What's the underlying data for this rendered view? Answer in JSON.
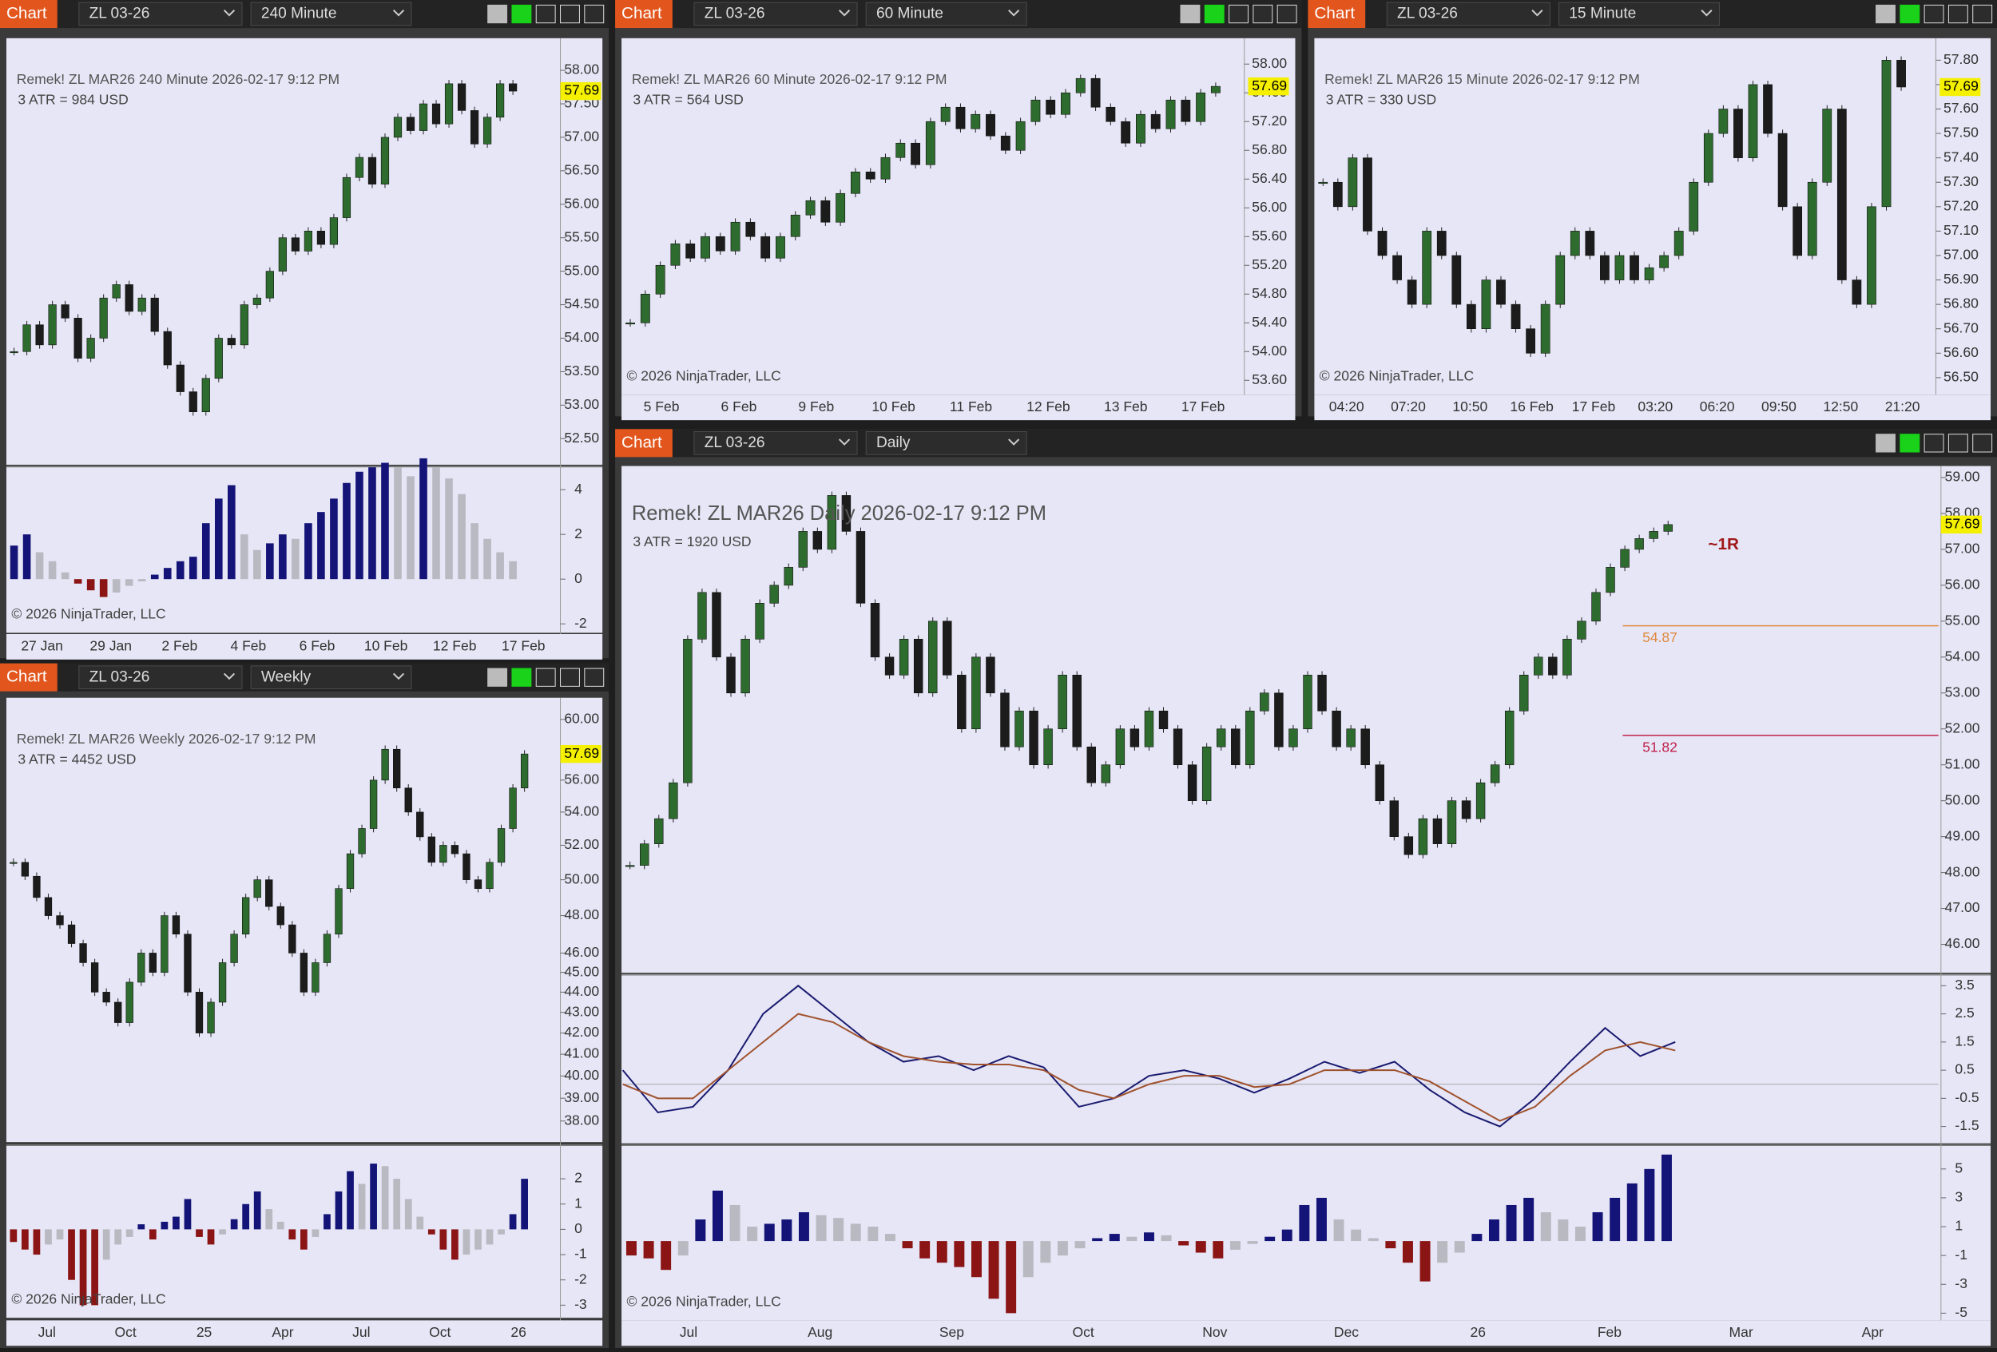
{
  "panels": [
    {
      "toolbar": {
        "tab": "Chart",
        "instrument": "ZL 03-26",
        "interval": "240 Minute"
      },
      "chart": {
        "type": "candlestick",
        "header": "Remek!  ZL MAR26  240 Minute  2026-02-17 9:12 PM",
        "atr": "3 ATR = 984 USD",
        "copyright": "© 2026 NinjaTrader, LLC",
        "last_price": 57.69,
        "up_color": "#2e6b2e",
        "down_color": "#1c1c1c",
        "closes": [
          53.8,
          54.2,
          53.9,
          54.5,
          54.3,
          53.7,
          54.0,
          54.6,
          54.8,
          54.4,
          54.6,
          54.1,
          53.6,
          53.2,
          52.9,
          53.4,
          54.0,
          53.9,
          54.5,
          54.6,
          55.0,
          55.5,
          55.3,
          55.6,
          55.4,
          55.8,
          56.4,
          56.7,
          56.3,
          57.0,
          57.3,
          57.1,
          57.5,
          57.2,
          57.8,
          57.4,
          56.9,
          57.3,
          57.8,
          57.69
        ],
        "ylim": [
          52.11,
          58.48
        ],
        "log_scale": false,
        "yticks": [
          {
            "value": 52.5,
            "label": "52.50"
          },
          {
            "value": 53,
            "label": "53.00"
          },
          {
            "value": 53.5,
            "label": "53.50"
          },
          {
            "value": 54,
            "label": "54.00"
          },
          {
            "value": 54.5,
            "label": "54.50"
          },
          {
            "value": 55,
            "label": "55.00"
          },
          {
            "value": 55.5,
            "label": "55.50"
          },
          {
            "value": 56,
            "label": "56.00"
          },
          {
            "value": 56.5,
            "label": "56.50"
          },
          {
            "value": 57,
            "label": "57.00"
          },
          {
            "value": 57.5,
            "label": "57.50"
          },
          {
            "value": 58,
            "label": "58.00"
          }
        ],
        "x_labels": [
          "27 Jan",
          "29 Jan",
          "2 Feb",
          "4 Feb",
          "6 Feb",
          "10 Feb",
          "12 Feb",
          "17 Feb"
        ]
      },
      "indicators": [
        {
          "type": "histogram",
          "ylim": [
            -2.4,
            5.0
          ],
          "yticks": [
            4,
            2,
            0,
            -2
          ],
          "values": [
            1.5,
            2.0,
            1.2,
            0.8,
            0.3,
            -0.2,
            -0.5,
            -0.8,
            -0.6,
            -0.3,
            -0.1,
            0.2,
            0.5,
            0.8,
            1.0,
            2.5,
            3.6,
            4.2,
            2.0,
            1.3,
            1.6,
            2.0,
            1.8,
            2.5,
            3.0,
            3.6,
            4.3,
            4.8,
            5.0,
            5.2,
            5.0,
            4.6,
            5.4,
            5.0,
            4.5,
            3.8,
            2.5,
            1.8,
            1.2,
            0.8
          ]
        }
      ]
    },
    {
      "toolbar": {
        "tab": "Chart",
        "instrument": "ZL 03-26",
        "interval": "60 Minute"
      },
      "chart": {
        "type": "candlestick",
        "header": "Remek!  ZL MAR26  60 Minute  2026-02-17 9:12 PM",
        "atr": "3 ATR = 564 USD",
        "copyright": "© 2026 NinjaTrader, LLC",
        "last_price": 57.69,
        "up_color": "#2e6b2e",
        "down_color": "#1c1c1c",
        "closes": [
          54.4,
          54.8,
          55.2,
          55.5,
          55.3,
          55.6,
          55.4,
          55.8,
          55.6,
          55.3,
          55.6,
          55.9,
          56.1,
          55.8,
          56.2,
          56.5,
          56.4,
          56.7,
          56.9,
          56.6,
          57.2,
          57.4,
          57.1,
          57.3,
          57.0,
          56.8,
          57.2,
          57.5,
          57.3,
          57.6,
          57.8,
          57.4,
          57.2,
          56.9,
          57.3,
          57.1,
          57.5,
          57.2,
          57.6,
          57.69
        ],
        "ylim": [
          53.4,
          58.36
        ],
        "log_scale": false,
        "yticks": [
          {
            "value": 53.6,
            "label": "53.60"
          },
          {
            "value": 54,
            "label": "54.00"
          },
          {
            "value": 54.4,
            "label": "54.40"
          },
          {
            "value": 54.8,
            "label": "54.80"
          },
          {
            "value": 55.2,
            "label": "55.20"
          },
          {
            "value": 55.6,
            "label": "55.60"
          },
          {
            "value": 56,
            "label": "56.00"
          },
          {
            "value": 56.4,
            "label": "56.40"
          },
          {
            "value": 56.8,
            "label": "56.80"
          },
          {
            "value": 57.2,
            "label": "57.20"
          },
          {
            "value": 57.6,
            "label": "57.60"
          },
          {
            "value": 58,
            "label": "58.00"
          }
        ],
        "x_labels": [
          "5 Feb",
          "6 Feb",
          "9 Feb",
          "10 Feb",
          "11 Feb",
          "12 Feb",
          "13 Feb",
          "17 Feb"
        ]
      },
      "indicators": []
    },
    {
      "toolbar": {
        "tab": "Chart",
        "instrument": "ZL 03-26",
        "interval": "15 Minute"
      },
      "chart": {
        "type": "candlestick",
        "header": "Remek!  ZL MAR26  15 Minute  2026-02-17 9:12 PM",
        "atr": "3 ATR = 330 USD",
        "copyright": "© 2026 NinjaTrader, LLC",
        "last_price": 57.69,
        "up_color": "#2e6b2e",
        "down_color": "#1c1c1c",
        "closes": [
          57.3,
          57.2,
          57.4,
          57.1,
          57.0,
          56.9,
          56.8,
          57.1,
          57.0,
          56.8,
          56.7,
          56.9,
          56.8,
          56.7,
          56.6,
          56.8,
          57.0,
          57.1,
          57.0,
          56.9,
          57.0,
          56.9,
          56.95,
          57.0,
          57.1,
          57.3,
          57.5,
          57.6,
          57.4,
          57.7,
          57.5,
          57.2,
          57.0,
          57.3,
          57.6,
          56.9,
          56.8,
          57.2,
          57.8,
          57.69
        ],
        "ylim": [
          56.43,
          57.89
        ],
        "log_scale": false,
        "yticks": [
          {
            "value": 56.5,
            "label": "56.50"
          },
          {
            "value": 56.6,
            "label": "56.60"
          },
          {
            "value": 56.7,
            "label": "56.70"
          },
          {
            "value": 56.8,
            "label": "56.80"
          },
          {
            "value": 56.9,
            "label": "56.90"
          },
          {
            "value": 57,
            "label": "57.00"
          },
          {
            "value": 57.1,
            "label": "57.10"
          },
          {
            "value": 57.2,
            "label": "57.20"
          },
          {
            "value": 57.3,
            "label": "57.30"
          },
          {
            "value": 57.4,
            "label": "57.40"
          },
          {
            "value": 57.5,
            "label": "57.50"
          },
          {
            "value": 57.6,
            "label": "57.60"
          },
          {
            "value": 57.7,
            "label": "57.70"
          },
          {
            "value": 57.8,
            "label": "57.80"
          }
        ],
        "x_labels": [
          "04:20",
          "07:20",
          "10:50",
          "16 Feb",
          "17 Feb",
          "03:20",
          "06:20",
          "09:50",
          "12:50",
          "21:20"
        ]
      },
      "indicators": []
    },
    {
      "toolbar": {
        "tab": "Chart",
        "instrument": "ZL 03-26",
        "interval": "Weekly"
      },
      "chart": {
        "type": "candlestick",
        "header": "Remek!  ZL MAR26  Weekly  2026-02-17 9:12 PM",
        "atr": "3 ATR = 4452 USD",
        "copyright": "© 2026 NinjaTrader, LLC",
        "last_price": 57.69,
        "up_color": "#2e6b2e",
        "down_color": "#1c1c1c",
        "closes": [
          51.0,
          50.2,
          49.0,
          48.0,
          47.5,
          46.5,
          45.5,
          44.0,
          43.5,
          42.5,
          44.5,
          46.0,
          45.0,
          48.0,
          47.0,
          44.0,
          42.0,
          43.5,
          45.5,
          47.0,
          49.0,
          50.0,
          48.5,
          47.5,
          46.0,
          44.0,
          45.5,
          47.0,
          49.5,
          51.5,
          53.0,
          56.0,
          58.0,
          55.5,
          54.0,
          52.5,
          51.0,
          52.0,
          51.5,
          50.0,
          49.5,
          51.0,
          53.0,
          55.5,
          57.69
        ],
        "ylim": [
          37.1,
          61.5
        ],
        "log_scale": true,
        "yticks": [
          {
            "value": 38,
            "label": "38.00"
          },
          {
            "value": 39,
            "label": "39.00"
          },
          {
            "value": 40,
            "label": "40.00"
          },
          {
            "value": 41,
            "label": "41.00"
          },
          {
            "value": 42,
            "label": "42.00"
          },
          {
            "value": 43,
            "label": "43.00"
          },
          {
            "value": 44,
            "label": "44.00"
          },
          {
            "value": 45,
            "label": "45.00"
          },
          {
            "value": 46,
            "label": "46.00"
          },
          {
            "value": 48,
            "label": "48.00"
          },
          {
            "value": 50,
            "label": "50.00"
          },
          {
            "value": 52,
            "label": "52.00"
          },
          {
            "value": 54,
            "label": "54.00"
          },
          {
            "value": 56,
            "label": "56.00"
          },
          {
            "value": 60,
            "label": "60.00"
          }
        ],
        "x_labels": [
          "Jul",
          "Oct",
          "25",
          "Apr",
          "Jul",
          "Oct",
          "26"
        ]
      },
      "indicators": [
        {
          "type": "histogram",
          "ylim": [
            -3.5,
            3.3
          ],
          "yticks": [
            2,
            1,
            0,
            -1,
            -2,
            -3
          ],
          "values": [
            -0.5,
            -0.8,
            -1.0,
            -0.6,
            -0.4,
            -2.0,
            -3.0,
            -3.0,
            -1.2,
            -0.6,
            -0.3,
            0.2,
            -0.4,
            0.3,
            0.5,
            1.2,
            -0.3,
            -0.6,
            -0.2,
            0.4,
            1.0,
            1.5,
            0.8,
            0.3,
            -0.4,
            -0.8,
            -0.3,
            0.6,
            1.5,
            2.3,
            1.8,
            2.6,
            2.5,
            2.0,
            1.2,
            0.5,
            -0.2,
            -0.8,
            -1.2,
            -1.0,
            -0.8,
            -0.6,
            -0.2,
            0.6,
            2.0
          ]
        }
      ]
    },
    {
      "toolbar": {
        "tab": "Chart",
        "instrument": "ZL 03-26",
        "interval": "Daily"
      },
      "chart": {
        "type": "candlestick",
        "header": "Remek!  ZL MAR26  Daily  2026-02-17 9:12 PM",
        "atr": "3 ATR = 1920 USD",
        "copyright": "© 2026 NinjaTrader, LLC",
        "last_price": 57.69,
        "up_color": "#2e6b2e",
        "down_color": "#1c1c1c",
        "closes": [
          48.2,
          48.8,
          49.5,
          50.5,
          54.5,
          55.8,
          54.0,
          53.0,
          54.5,
          55.5,
          56.0,
          56.5,
          57.5,
          57.0,
          58.5,
          57.5,
          55.5,
          54.0,
          53.5,
          54.5,
          53.0,
          55.0,
          53.5,
          52.0,
          54.0,
          53.0,
          51.5,
          52.5,
          51.0,
          52.0,
          53.5,
          51.5,
          50.5,
          51.0,
          52.0,
          51.5,
          52.5,
          52.0,
          51.0,
          50.0,
          51.5,
          52.0,
          51.0,
          52.5,
          53.0,
          51.5,
          52.0,
          53.5,
          52.5,
          51.5,
          52.0,
          51.0,
          50.0,
          49.0,
          48.5,
          49.5,
          48.8,
          50.0,
          49.5,
          50.5,
          51.0,
          52.5,
          53.5,
          54.0,
          53.5,
          54.5,
          55.0,
          55.8,
          56.5,
          57.0,
          57.3,
          57.5,
          57.69
        ],
        "ylim": [
          45.21,
          59.32
        ],
        "log_scale": false,
        "yticks": [
          {
            "value": 46,
            "label": "46.00"
          },
          {
            "value": 47,
            "label": "47.00"
          },
          {
            "value": 48,
            "label": "48.00"
          },
          {
            "value": 49,
            "label": "49.00"
          },
          {
            "value": 50,
            "label": "50.00"
          },
          {
            "value": 51,
            "label": "51.00"
          },
          {
            "value": 52,
            "label": "52.00"
          },
          {
            "value": 53,
            "label": "53.00"
          },
          {
            "value": 54,
            "label": "54.00"
          },
          {
            "value": 55,
            "label": "55.00"
          },
          {
            "value": 56,
            "label": "56.00"
          },
          {
            "value": 57,
            "label": "57.00"
          },
          {
            "value": 58,
            "label": "58.00"
          },
          {
            "value": 59,
            "label": "59.00"
          }
        ],
        "x_labels": [
          "Jul",
          "Aug",
          "Sep",
          "Oct",
          "Nov",
          "Dec",
          "26",
          "Feb",
          "Mar",
          "Apr"
        ],
        "levels": [
          {
            "value": 54.87,
            "color": "#e08a40"
          },
          {
            "value": 51.82,
            "color": "#c0204a"
          }
        ],
        "annotation": "~1R"
      },
      "indicators": [
        {
          "type": "lines",
          "ylim": [
            -2.1,
            3.87
          ],
          "yticks": [
            3.5,
            2.5,
            1.5,
            0.5,
            -0.5,
            -1.5
          ],
          "series": [
            {
              "color": "#1a1a70",
              "values": [
                0.5,
                -1,
                -0.8,
                0.5,
                2.5,
                3.5,
                2.5,
                1.5,
                0.8,
                1.0,
                0.5,
                1.0,
                0.6,
                -0.8,
                -0.5,
                0.3,
                0.5,
                0.2,
                -0.3,
                0.2,
                0.8,
                0.4,
                0.8,
                -0.2,
                -1.0,
                -1.5,
                -0.5,
                0.8,
                2.0,
                1.0,
                1.5
              ]
            },
            {
              "color": "#a0522d",
              "values": [
                0,
                -0.5,
                -0.5,
                0.5,
                1.5,
                2.5,
                2.2,
                1.5,
                1.0,
                0.8,
                0.7,
                0.7,
                0.5,
                -0.2,
                -0.5,
                0,
                0.3,
                0.3,
                -0.1,
                0,
                0.5,
                0.5,
                0.5,
                0.1,
                -0.6,
                -1.3,
                -0.8,
                0.3,
                1.2,
                1.5,
                1.2
              ]
            }
          ]
        },
        {
          "type": "histogram",
          "ylim": [
            -5.5,
            6.6
          ],
          "yticks": [
            5,
            3,
            1,
            -1,
            -3,
            -5
          ],
          "values": [
            -1.0,
            -1.2,
            -2.0,
            -1.0,
            1.5,
            3.5,
            2.5,
            1.0,
            1.2,
            1.5,
            2.0,
            1.8,
            1.6,
            1.2,
            1.0,
            0.5,
            -0.5,
            -1.2,
            -1.5,
            -1.8,
            -2.5,
            -4.0,
            -5.0,
            -2.5,
            -1.5,
            -1.0,
            -0.5,
            0.2,
            0.5,
            0.3,
            0.6,
            0.4,
            -0.3,
            -0.8,
            -1.2,
            -0.6,
            -0.2,
            0.3,
            0.8,
            2.5,
            3.0,
            1.5,
            0.8,
            0.2,
            -0.5,
            -1.5,
            -2.8,
            -1.5,
            -0.8,
            0.5,
            1.5,
            2.5,
            3.0,
            2.0,
            1.5,
            1.0,
            2.0,
            3.0,
            4.0,
            5.0,
            6.0
          ]
        }
      ]
    }
  ]
}
